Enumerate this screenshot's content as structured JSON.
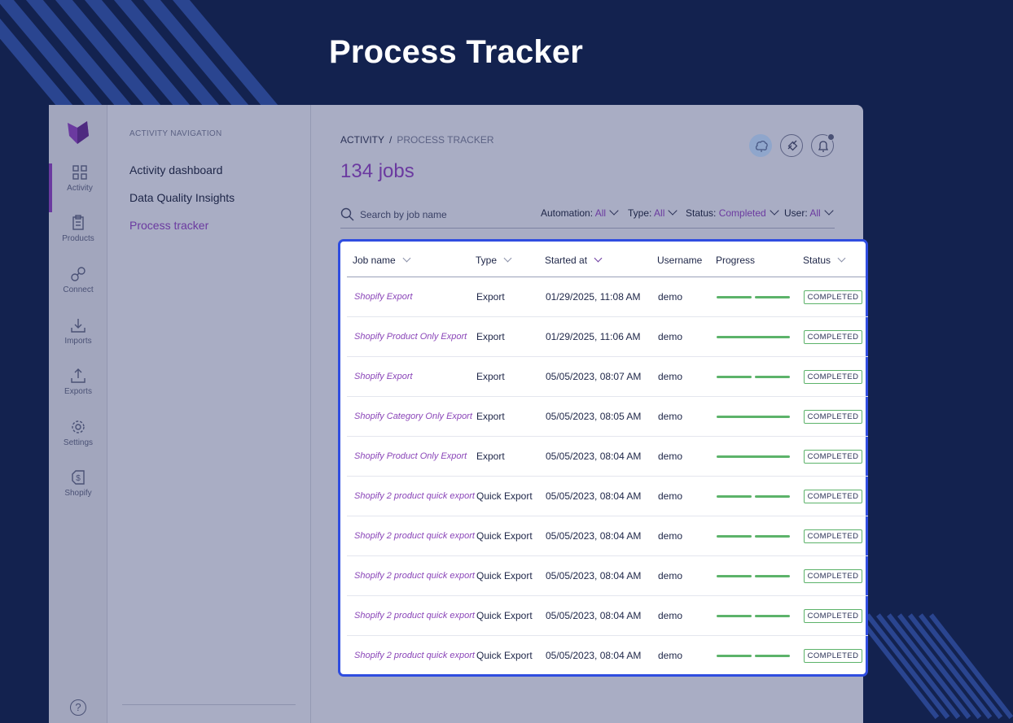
{
  "hero": {
    "title": "Process Tracker"
  },
  "rail": {
    "items": [
      {
        "label": "Activity",
        "icon": "grid-icon"
      },
      {
        "label": "Products",
        "icon": "clipboard-icon"
      },
      {
        "label": "Connect",
        "icon": "link-icon"
      },
      {
        "label": "Imports",
        "icon": "import-icon"
      },
      {
        "label": "Exports",
        "icon": "export-icon"
      },
      {
        "label": "Settings",
        "icon": "gear-icon"
      },
      {
        "label": "Shopify",
        "icon": "shopify-icon"
      }
    ],
    "help": "?"
  },
  "subnav": {
    "title": "ACTIVITY NAVIGATION",
    "items": [
      {
        "label": "Activity dashboard"
      },
      {
        "label": "Data Quality Insights"
      },
      {
        "label": "Process tracker"
      }
    ]
  },
  "main": {
    "breadcrumb": {
      "root": "ACTIVITY",
      "sep": "/",
      "current": "PROCESS TRACKER"
    },
    "title": "134 jobs",
    "search_placeholder": "Search by job name",
    "filters": [
      {
        "label": "Automation:",
        "value": "All"
      },
      {
        "label": "Type:",
        "value": "All"
      },
      {
        "label": "Status:",
        "value": "Completed"
      },
      {
        "label": "User:",
        "value": "All"
      }
    ]
  },
  "table": {
    "columns": [
      "Job name",
      "Type",
      "Started at",
      "Username",
      "Progress",
      "Status"
    ],
    "rows": [
      {
        "job": "Shopify Export",
        "type": "Export",
        "started": "01/29/2025, 11:08 AM",
        "user": "demo",
        "progress_steps": 2,
        "status": "COMPLETED"
      },
      {
        "job": "Shopify Product Only Export",
        "type": "Export",
        "started": "01/29/2025, 11:06 AM",
        "user": "demo",
        "progress_steps": 1,
        "status": "COMPLETED"
      },
      {
        "job": "Shopify Export",
        "type": "Export",
        "started": "05/05/2023, 08:07 AM",
        "user": "demo",
        "progress_steps": 2,
        "status": "COMPLETED"
      },
      {
        "job": "Shopify Category Only Export",
        "type": "Export",
        "started": "05/05/2023, 08:05 AM",
        "user": "demo",
        "progress_steps": 1,
        "status": "COMPLETED"
      },
      {
        "job": "Shopify Product Only Export",
        "type": "Export",
        "started": "05/05/2023, 08:04 AM",
        "user": "demo",
        "progress_steps": 1,
        "status": "COMPLETED"
      },
      {
        "job": "Shopify 2 product quick export",
        "type": "Quick Export",
        "started": "05/05/2023, 08:04 AM",
        "user": "demo",
        "progress_steps": 2,
        "status": "COMPLETED"
      },
      {
        "job": "Shopify 2 product quick export",
        "type": "Quick Export",
        "started": "05/05/2023, 08:04 AM",
        "user": "demo",
        "progress_steps": 2,
        "status": "COMPLETED"
      },
      {
        "job": "Shopify 2 product quick export",
        "type": "Quick Export",
        "started": "05/05/2023, 08:04 AM",
        "user": "demo",
        "progress_steps": 2,
        "status": "COMPLETED"
      },
      {
        "job": "Shopify 2 product quick export",
        "type": "Quick Export",
        "started": "05/05/2023, 08:04 AM",
        "user": "demo",
        "progress_steps": 2,
        "status": "COMPLETED"
      },
      {
        "job": "Shopify 2 product quick export",
        "type": "Quick Export",
        "started": "05/05/2023, 08:04 AM",
        "user": "demo",
        "progress_steps": 2,
        "status": "COMPLETED"
      }
    ]
  },
  "colors": {
    "accent": "#6b3aa0",
    "link": "#8a45b8",
    "success": "#5cb36a",
    "highlight": "#2f4de0",
    "background": "#13224f"
  }
}
